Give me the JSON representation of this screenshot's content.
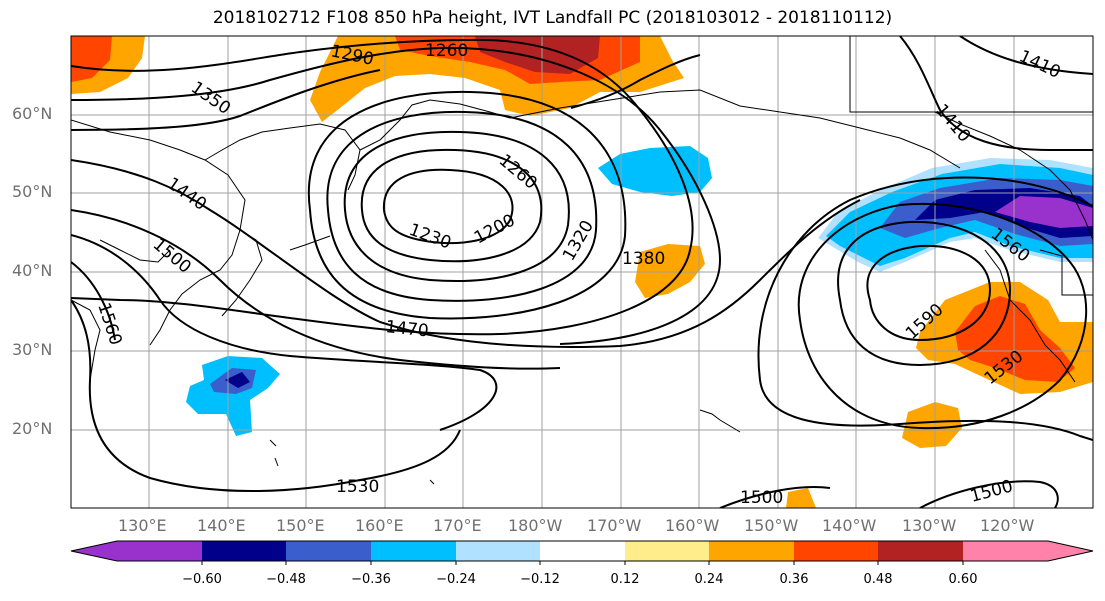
{
  "title": "2018102712 F108 850 hPa height, IVT Landfall PC (2018103012 - 2018110112)",
  "lat_labels": [
    "60°N",
    "50°N",
    "40°N",
    "30°N",
    "20°N"
  ],
  "lon_labels": [
    "130°E",
    "140°E",
    "150°E",
    "160°E",
    "170°E",
    "180°W",
    "170°W",
    "160°W",
    "150°W",
    "140°W",
    "130°W",
    "120°W"
  ],
  "contour_labels": [
    "1290",
    "1260",
    "1350",
    "1260",
    "1410",
    "1410",
    "1440",
    "1230",
    "1200",
    "1320",
    "1380",
    "1500",
    "1560",
    "1470",
    "1590",
    "1560",
    "1530",
    "1530",
    "1500",
    "1500"
  ],
  "colorbar": {
    "ticks": [
      "−0.60",
      "−0.48",
      "−0.36",
      "−0.24",
      "−0.12",
      "0.12",
      "0.24",
      "0.36",
      "0.48",
      "0.60"
    ],
    "colors": [
      "#9932cc",
      "#00008b",
      "#3a5fcd",
      "#00bfff",
      "#b0e2ff",
      "#ffffff",
      "#ffec8b",
      "#ffa500",
      "#ff4500",
      "#b22222",
      "#ff82ab"
    ]
  }
}
